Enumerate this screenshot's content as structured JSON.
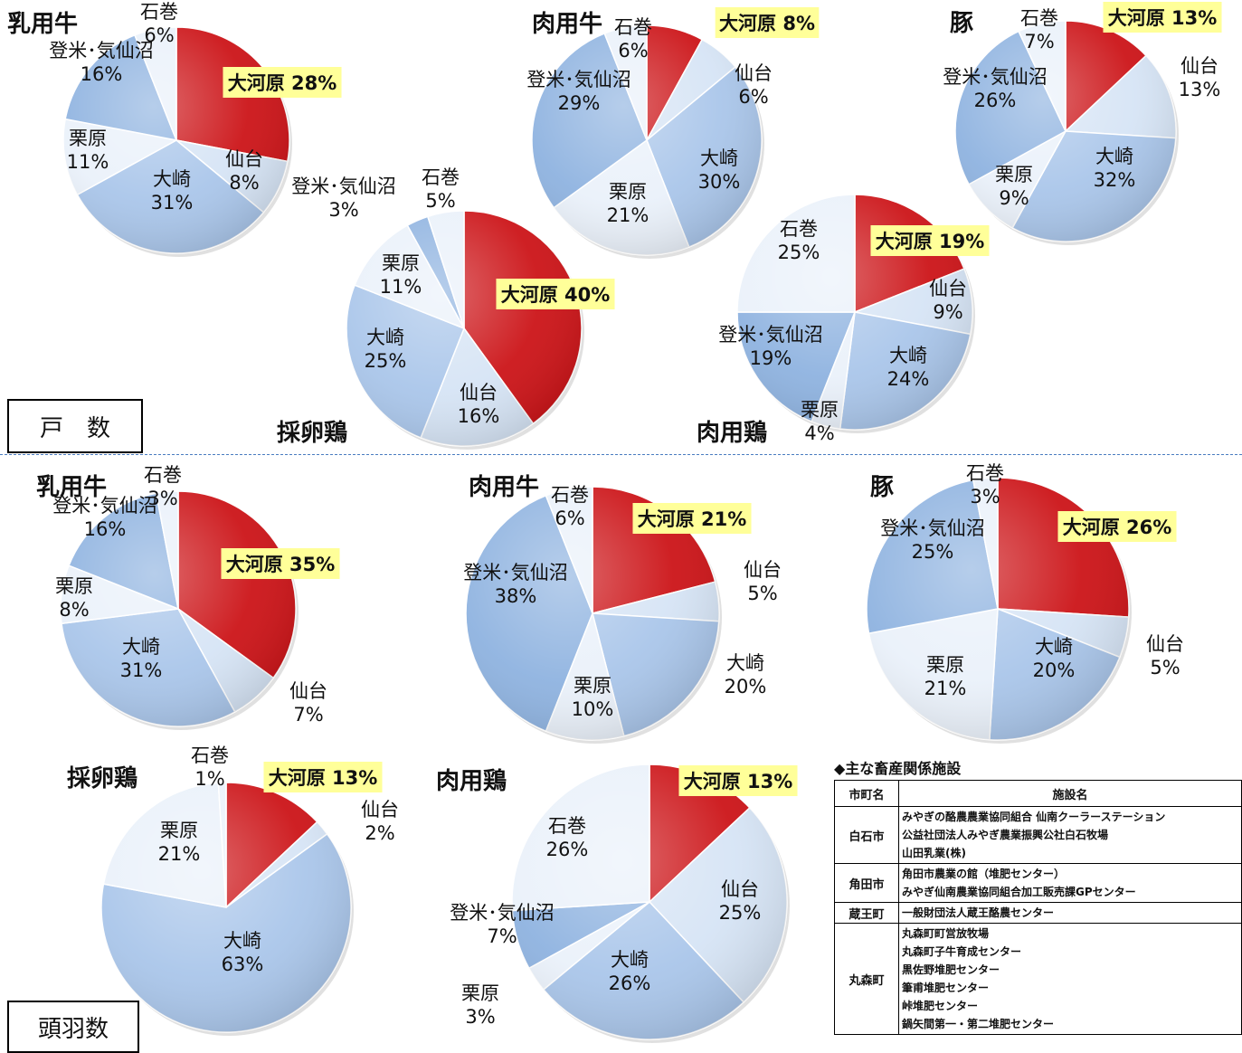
{
  "sections": {
    "households_label": "戸　数",
    "heads_label": "頭羽数"
  },
  "colors": {
    "ookawara": "#cc1418",
    "blue_dark": "#8fb3e0",
    "blue_mid": "#aac6ea",
    "blue_light": "#d6e4f5",
    "blue_pale": "#eaf1fa",
    "highlight_bg": "#ffff99"
  },
  "chart_data": [
    {
      "type": "pie",
      "group": "戸数",
      "title": "乳用牛",
      "slices": [
        {
          "label": "大河原",
          "value": 28
        },
        {
          "label": "仙台",
          "value": 8
        },
        {
          "label": "大崎",
          "value": 31
        },
        {
          "label": "栗原",
          "value": 11
        },
        {
          "label": "登米･気仙沼",
          "value": 16
        },
        {
          "label": "石巻",
          "value": 6
        }
      ]
    },
    {
      "type": "pie",
      "group": "戸数",
      "title": "肉用牛",
      "slices": [
        {
          "label": "大河原",
          "value": 8
        },
        {
          "label": "仙台",
          "value": 6
        },
        {
          "label": "大崎",
          "value": 30
        },
        {
          "label": "栗原",
          "value": 21
        },
        {
          "label": "登米･気仙沼",
          "value": 29
        },
        {
          "label": "石巻",
          "value": 6
        }
      ]
    },
    {
      "type": "pie",
      "group": "戸数",
      "title": "豚",
      "slices": [
        {
          "label": "大河原",
          "value": 13
        },
        {
          "label": "仙台",
          "value": 13
        },
        {
          "label": "大崎",
          "value": 32
        },
        {
          "label": "栗原",
          "value": 9
        },
        {
          "label": "登米･気仙沼",
          "value": 26
        },
        {
          "label": "石巻",
          "value": 7
        }
      ]
    },
    {
      "type": "pie",
      "group": "戸数",
      "title": "採卵鶏",
      "slices": [
        {
          "label": "大河原",
          "value": 40
        },
        {
          "label": "仙台",
          "value": 16
        },
        {
          "label": "大崎",
          "value": 25
        },
        {
          "label": "栗原",
          "value": 11
        },
        {
          "label": "登米･気仙沼",
          "value": 3
        },
        {
          "label": "石巻",
          "value": 5
        }
      ]
    },
    {
      "type": "pie",
      "group": "戸数",
      "title": "肉用鶏",
      "slices": [
        {
          "label": "大河原",
          "value": 19
        },
        {
          "label": "仙台",
          "value": 9
        },
        {
          "label": "大崎",
          "value": 24
        },
        {
          "label": "栗原",
          "value": 4
        },
        {
          "label": "登米･気仙沼",
          "value": 19
        },
        {
          "label": "石巻",
          "value": 25
        }
      ]
    },
    {
      "type": "pie",
      "group": "頭羽数",
      "title": "乳用牛",
      "slices": [
        {
          "label": "大河原",
          "value": 35
        },
        {
          "label": "仙台",
          "value": 7
        },
        {
          "label": "大崎",
          "value": 31
        },
        {
          "label": "栗原",
          "value": 8
        },
        {
          "label": "登米･気仙沼",
          "value": 16
        },
        {
          "label": "石巻",
          "value": 3
        }
      ]
    },
    {
      "type": "pie",
      "group": "頭羽数",
      "title": "肉用牛",
      "slices": [
        {
          "label": "大河原",
          "value": 21
        },
        {
          "label": "仙台",
          "value": 5
        },
        {
          "label": "大崎",
          "value": 20
        },
        {
          "label": "栗原",
          "value": 10
        },
        {
          "label": "登米･気仙沼",
          "value": 38
        },
        {
          "label": "石巻",
          "value": 6
        }
      ]
    },
    {
      "type": "pie",
      "group": "頭羽数",
      "title": "豚",
      "slices": [
        {
          "label": "大河原",
          "value": 26
        },
        {
          "label": "仙台",
          "value": 5
        },
        {
          "label": "大崎",
          "value": 20
        },
        {
          "label": "栗原",
          "value": 21
        },
        {
          "label": "登米･気仙沼",
          "value": 25
        },
        {
          "label": "石巻",
          "value": 3
        }
      ]
    },
    {
      "type": "pie",
      "group": "頭羽数",
      "title": "採卵鶏",
      "slices": [
        {
          "label": "大河原",
          "value": 13
        },
        {
          "label": "仙台",
          "value": 2
        },
        {
          "label": "大崎",
          "value": 63
        },
        {
          "label": "栗原",
          "value": 21
        },
        {
          "label": "石巻",
          "value": 1
        }
      ]
    },
    {
      "type": "pie",
      "group": "頭羽数",
      "title": "肉用鶏",
      "slices": [
        {
          "label": "大河原",
          "value": 13
        },
        {
          "label": "仙台",
          "value": 25
        },
        {
          "label": "大崎",
          "value": 26
        },
        {
          "label": "栗原",
          "value": 3
        },
        {
          "label": "登米･気仙沼",
          "value": 7
        },
        {
          "label": "石巻",
          "value": 26
        }
      ]
    }
  ],
  "facilities": {
    "title": "◆主な畜産関係施設",
    "headers": [
      "市町名",
      "施設名"
    ],
    "rows": [
      {
        "city": "白石市",
        "items": [
          "みやぎの酪農農業協同組合 仙南クーラーステーション",
          "公益社団法人みやぎ農業振興公社白石牧場",
          "山田乳業(株)"
        ]
      },
      {
        "city": "角田市",
        "items": [
          "角田市農業の館（堆肥センター）",
          "みやぎ仙南農業協同組合加工販売課GPセンター"
        ]
      },
      {
        "city": "蔵王町",
        "items": [
          "一般財団法人蔵王酪農センター"
        ]
      },
      {
        "city": "丸森町",
        "items": [
          "丸森町町営放牧場",
          "丸森町子牛育成センター",
          "黒佐野堆肥センター",
          "筆甫堆肥センター",
          "峠堆肥センター",
          "鍋矢間第一・第二堆肥センター"
        ]
      }
    ]
  }
}
